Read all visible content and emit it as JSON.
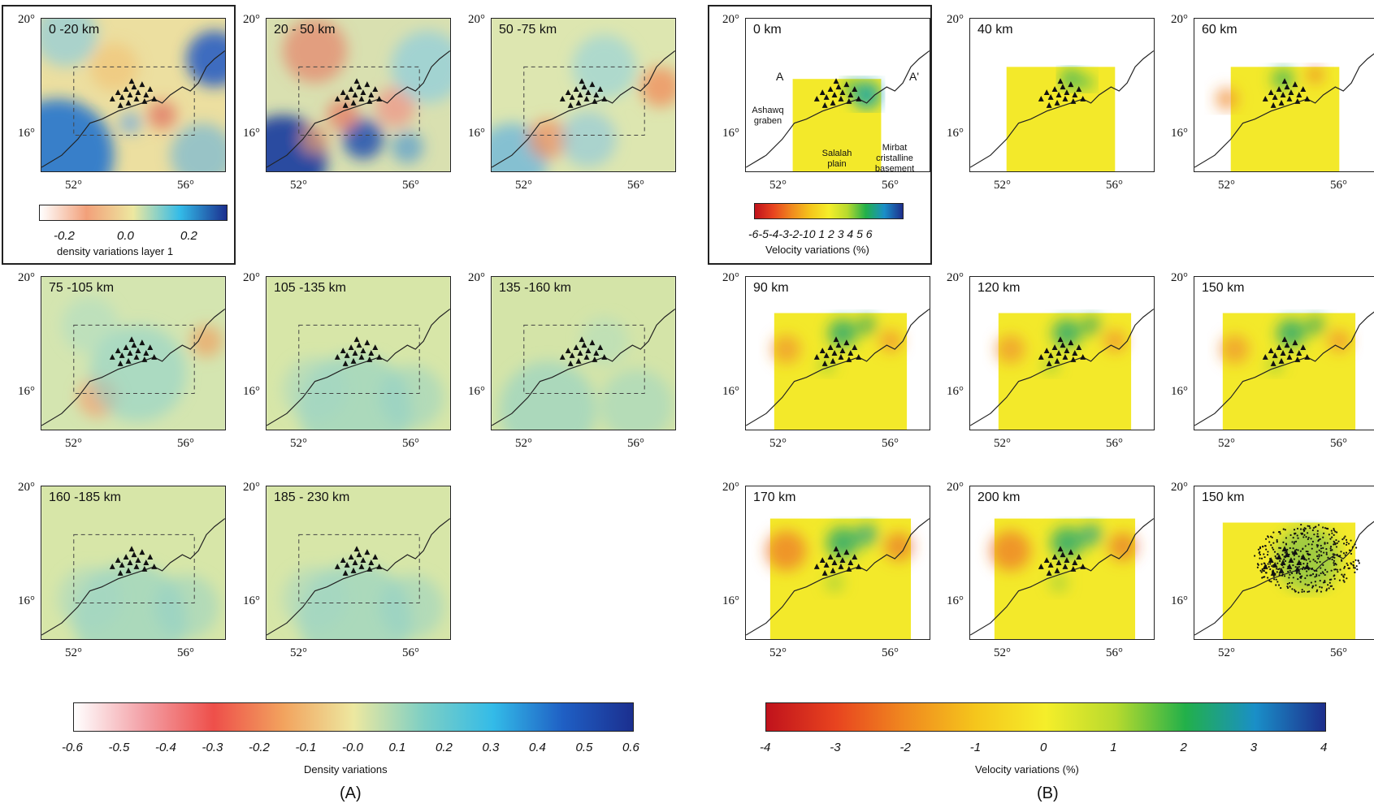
{
  "panel_a": {
    "label": "(A)",
    "maps": [
      {
        "depth": "0 -20 km",
        "style": "a0"
      },
      {
        "depth": "20 - 50 km",
        "style": "a1"
      },
      {
        "depth": "50 -75 km",
        "style": "a2"
      },
      {
        "depth": "75 -105 km",
        "style": "a3"
      },
      {
        "depth": "105 -135 km",
        "style": "a4"
      },
      {
        "depth": "135 -160 km",
        "style": "a5"
      },
      {
        "depth": "160 -185 km",
        "style": "a4"
      },
      {
        "depth": "185 - 230 km",
        "style": "a4"
      }
    ],
    "inset_colorbar": {
      "ticks": [
        "-0.2",
        "0.0",
        "0.2"
      ],
      "title": "density variations layer 1"
    },
    "colorbar": {
      "ticks": [
        "-0.6",
        "-0.5",
        "-0.4",
        "-0.3",
        "-0.2",
        "-0.1",
        "-0.0",
        "0.1",
        "0.2",
        "0.3",
        "0.4",
        "0.5",
        "0.6"
      ],
      "title": "Density variations",
      "colors": [
        "#ffffff",
        "#f3a0a6",
        "#ee4f4a",
        "#f2a35e",
        "#ede8a0",
        "#7ecfc4",
        "#33bbe8",
        "#1f5fc4",
        "#1b2f8f"
      ]
    }
  },
  "panel_b": {
    "label": "(B)",
    "maps": [
      {
        "depth": "0 km",
        "style": "b0"
      },
      {
        "depth": "40 km",
        "style": "b1"
      },
      {
        "depth": "60 km",
        "style": "b2"
      },
      {
        "depth": "90 km",
        "style": "b3"
      },
      {
        "depth": "120 km",
        "style": "b3"
      },
      {
        "depth": "150 km",
        "style": "b3"
      },
      {
        "depth": "170 km",
        "style": "b4"
      },
      {
        "depth": "200 km",
        "style": "b4"
      },
      {
        "depth": "150 km",
        "style": "b5"
      }
    ],
    "annotations": {
      "profile_start": "A",
      "profile_end": "A'",
      "ashawq": "Ashawq graben",
      "salalah": "Salalah plain",
      "mirbat": "Mirbat cristalline basement"
    },
    "inset_colorbar": {
      "ticks": "-6-5-4-3-2-10 1 2 3 4 5 6",
      "title": "Velocity variations (%)"
    },
    "colorbar": {
      "ticks": [
        "-4",
        "-3",
        "-2",
        "-1",
        "0",
        "1",
        "2",
        "3",
        "4"
      ],
      "title": "Velocity variations (%)",
      "colors": [
        "#c0121c",
        "#e8441f",
        "#f08a1f",
        "#f5c61c",
        "#f5ee2a",
        "#b7da2e",
        "#22b04a",
        "#1a8fc8",
        "#1d2e8c"
      ]
    }
  },
  "axes": {
    "lat_top": "20°",
    "lat_bottom": "16°",
    "lon_left": "52°",
    "lon_right": "56°"
  }
}
